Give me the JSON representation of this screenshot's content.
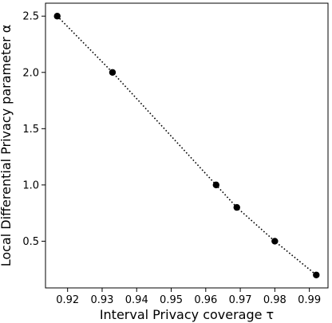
{
  "chart_data": {
    "type": "line",
    "title": "",
    "xlabel": "Interval Privacy coverage τ",
    "ylabel": "Local Differential Privacy parameter α",
    "x_ticks": [
      0.92,
      0.93,
      0.94,
      0.95,
      0.96,
      0.97,
      0.98,
      0.99
    ],
    "x_tick_labels": [
      "0.92",
      "0.93",
      "0.94",
      "0.95",
      "0.96",
      "0.97",
      "0.98",
      "0.99"
    ],
    "y_ticks": [
      0.5,
      1.0,
      1.5,
      2.0,
      2.5
    ],
    "y_tick_labels": [
      "0.5",
      "1.0",
      "1.5",
      "2.0",
      "2.5"
    ],
    "xlim": [
      0.9136,
      0.9954
    ],
    "ylim": [
      0.085,
      2.615
    ],
    "grid": false,
    "series": [
      {
        "x": [
          0.917,
          0.933,
          0.963,
          0.969,
          0.98,
          0.992
        ],
        "y": [
          2.5,
          2.0,
          1.0,
          0.8,
          0.5,
          0.2
        ],
        "line_style": "dotted",
        "marker": "circle",
        "color": "#000000"
      }
    ]
  }
}
